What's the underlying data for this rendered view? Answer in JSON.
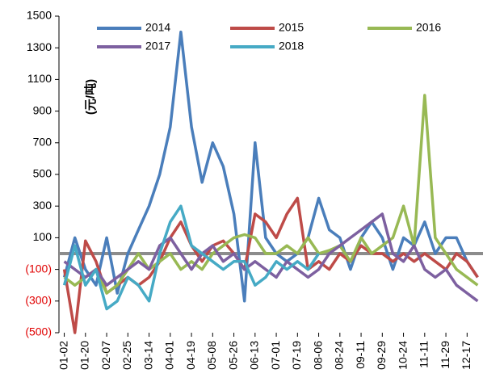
{
  "chart_data": {
    "type": "line",
    "y_axis_label": "(元/吨)",
    "categories": [
      "01-02",
      null,
      "01-20",
      null,
      "02-07",
      null,
      "02-25",
      null,
      "03-14",
      null,
      "04-01",
      null,
      "04-19",
      null,
      "05-08",
      null,
      "05-26",
      null,
      "06-13",
      null,
      "07-01",
      null,
      "07-19",
      null,
      "08-06",
      null,
      "08-24",
      null,
      "09-11",
      null,
      "09-29",
      null,
      "10-24",
      null,
      "11-11",
      null,
      "11-29",
      null,
      "12-17",
      null
    ],
    "series": [
      {
        "name": "2014",
        "color": "#4a7ebb",
        "values": [
          -150,
          100,
          -100,
          -200,
          100,
          -250,
          0,
          150,
          300,
          500,
          800,
          1400,
          800,
          450,
          700,
          550,
          250,
          -300,
          700,
          100,
          0,
          -50,
          0,
          100,
          350,
          150,
          100,
          -100,
          100,
          200,
          100,
          -100,
          100,
          50,
          200,
          0,
          100,
          100,
          -50,
          -150
        ]
      },
      {
        "name": "2015",
        "color": "#be4b48",
        "values": [
          -100,
          -500,
          80,
          -50,
          -250,
          -200,
          -150,
          -200,
          -150,
          -50,
          100,
          200,
          50,
          -50,
          50,
          80,
          0,
          -100,
          250,
          200,
          100,
          250,
          350,
          -100,
          -50,
          -100,
          0,
          -50,
          50,
          0,
          0,
          -50,
          0,
          -50,
          0,
          -50,
          -100,
          0,
          -50,
          -150
        ]
      },
      {
        "name": "2016",
        "color": "#98b954",
        "values": [
          -150,
          -200,
          -150,
          -100,
          -250,
          -200,
          -100,
          0,
          -100,
          -50,
          0,
          -100,
          -50,
          -100,
          0,
          50,
          100,
          120,
          100,
          0,
          0,
          50,
          0,
          100,
          0,
          20,
          50,
          -50,
          100,
          0,
          50,
          100,
          300,
          50,
          1000,
          100,
          0,
          -100,
          -150,
          -200
        ]
      },
      {
        "name": "2017",
        "color": "#7d60a0",
        "values": [
          -50,
          -100,
          -150,
          -100,
          -200,
          -150,
          -100,
          -50,
          -100,
          50,
          100,
          0,
          -100,
          0,
          50,
          -50,
          0,
          -100,
          -50,
          -100,
          -150,
          -50,
          -100,
          -150,
          -100,
          0,
          50,
          100,
          150,
          200,
          250,
          0,
          -50,
          50,
          -100,
          -150,
          -100,
          -200,
          -250,
          -300
        ]
      },
      {
        "name": "2018",
        "color": "#46aac5",
        "values": [
          -200,
          50,
          -200,
          -100,
          -350,
          -300,
          -150,
          -200,
          -300,
          0,
          200,
          300,
          50,
          0,
          -50,
          -100,
          -50,
          -50,
          -200,
          -150,
          -50,
          -100,
          -50,
          -100,
          0,
          null,
          null,
          null,
          null,
          null,
          null,
          null,
          null,
          null,
          null,
          null,
          null,
          null,
          null,
          null
        ]
      }
    ],
    "ylim": [
      -500,
      1500
    ],
    "yticks": [
      {
        "value": -500,
        "label": "(500)"
      },
      {
        "value": -300,
        "label": "(300)"
      },
      {
        "value": -100,
        "label": "(100)"
      },
      100,
      300,
      500,
      700,
      900,
      1100,
      1300,
      1500
    ]
  }
}
